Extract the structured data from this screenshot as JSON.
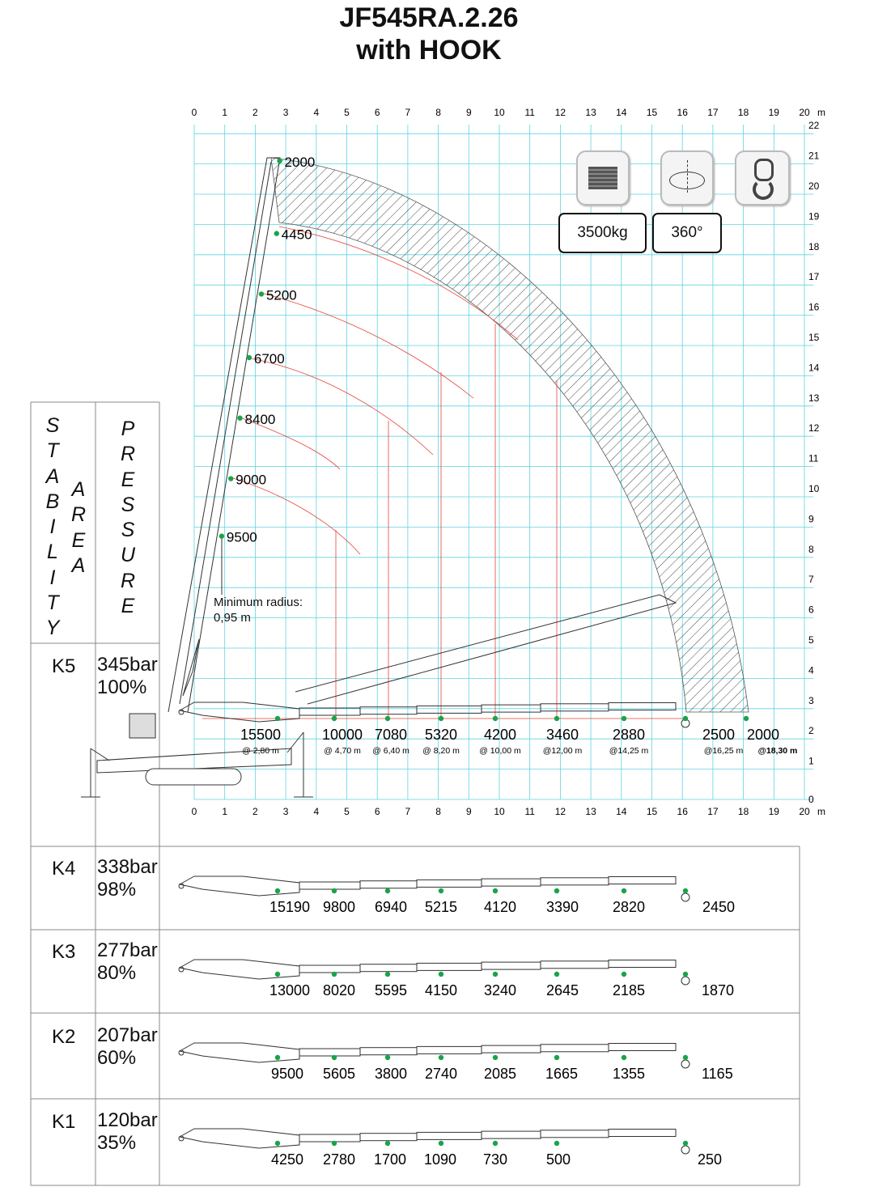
{
  "title": {
    "line1": "JF545RA.2.26",
    "line2": "with HOOK"
  },
  "axes": {
    "x_ticks": [
      "0",
      "1",
      "2",
      "3",
      "4",
      "5",
      "6",
      "7",
      "8",
      "9",
      "10",
      "11",
      "12",
      "13",
      "14",
      "15",
      "16",
      "17",
      "18",
      "19",
      "20"
    ],
    "x_unit": "m",
    "y_ticks": [
      "0",
      "1",
      "2",
      "3",
      "4",
      "5",
      "6",
      "7",
      "8",
      "9",
      "10",
      "11",
      "12",
      "13",
      "14",
      "15",
      "16",
      "17",
      "18",
      "19",
      "20",
      "21",
      "22"
    ]
  },
  "colors": {
    "grid": "#5fd3e0",
    "load_dot": "#1aa34a",
    "red_curve": "#e8443a",
    "hatch": "#333333"
  },
  "boom_loads": [
    {
      "value": "2000",
      "x_m": 2.8,
      "y_m": 21.1
    },
    {
      "value": "4450",
      "x_m": 2.7,
      "y_m": 18.7
    },
    {
      "value": "5200",
      "x_m": 2.2,
      "y_m": 16.7
    },
    {
      "value": "6700",
      "x_m": 1.8,
      "y_m": 14.6
    },
    {
      "value": "8400",
      "x_m": 1.5,
      "y_m": 12.6
    },
    {
      "value": "9000",
      "x_m": 1.2,
      "y_m": 10.6
    },
    {
      "value": "9500",
      "x_m": 0.9,
      "y_m": 8.7
    }
  ],
  "min_radius": {
    "line1": "Minimum radius:",
    "line2": "0,95 m"
  },
  "icons": {
    "weight": {
      "icon": "weight-block-icon",
      "label": "3500kg"
    },
    "rotation": {
      "icon": "rotation-360-icon",
      "label": "360°"
    },
    "hook": {
      "icon": "hook-icon"
    }
  },
  "side_labels": {
    "stability": "STABILITY",
    "area": "AREA",
    "pressure": "PRESSURE"
  },
  "rows": [
    {
      "id": "K5",
      "pressure": "345bar",
      "percent": "100%",
      "loads": [
        "15500",
        "10000",
        "7080",
        "5320",
        "4200",
        "3460",
        "2880",
        "2500",
        "2000"
      ],
      "radii": [
        "@ 2,80 m",
        "@ 4,70 m",
        "@ 6,40 m",
        "@ 8,20 m",
        "@ 10,00 m",
        "@12,00 m",
        "@14,25 m",
        "@16,25 m",
        "@18,30 m"
      ]
    },
    {
      "id": "K4",
      "pressure": "338bar",
      "percent": "98%",
      "loads": [
        "15190",
        "9800",
        "6940",
        "5215",
        "4120",
        "3390",
        "2820",
        "2450"
      ]
    },
    {
      "id": "K3",
      "pressure": "277bar",
      "percent": "80%",
      "loads": [
        "13000",
        "8020",
        "5595",
        "4150",
        "3240",
        "2645",
        "2185",
        "1870"
      ]
    },
    {
      "id": "K2",
      "pressure": "207bar",
      "percent": "60%",
      "loads": [
        "9500",
        "5605",
        "3800",
        "2740",
        "2085",
        "1665",
        "1355",
        "1165"
      ]
    },
    {
      "id": "K1",
      "pressure": "120bar",
      "percent": "35%",
      "loads": [
        "4250",
        "2780",
        "1700",
        "1090",
        "730",
        "500",
        "250"
      ]
    }
  ]
}
